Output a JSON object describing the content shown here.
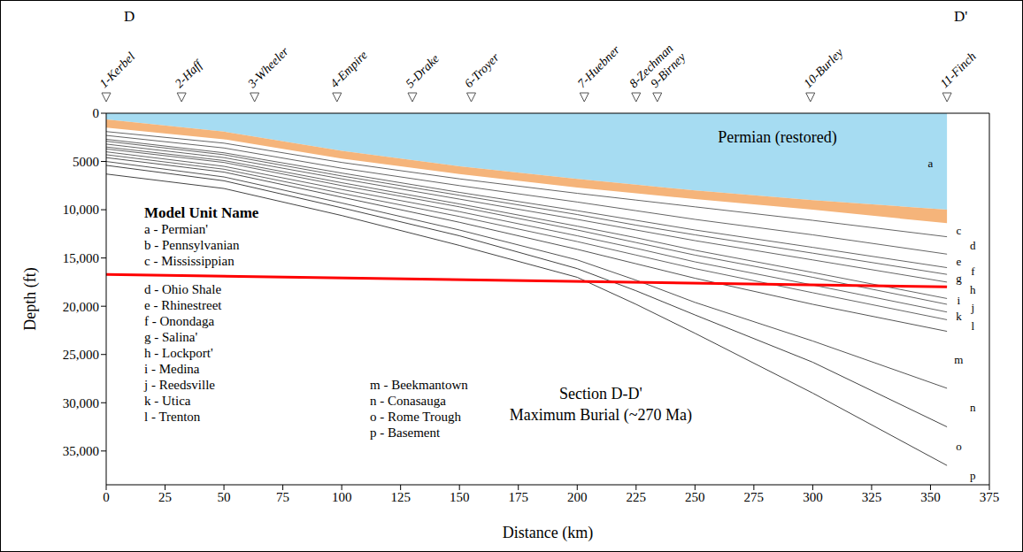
{
  "chart_data": {
    "type": "area",
    "corner_labels": {
      "left": "D",
      "right": "D'"
    },
    "x_label": "Distance (km)",
    "y_label": "Depth (ft)",
    "xlim": [
      0,
      375
    ],
    "xticks": [
      0,
      25,
      50,
      75,
      100,
      125,
      150,
      175,
      200,
      225,
      250,
      275,
      300,
      325,
      350,
      375
    ],
    "ylim": [
      0,
      38500
    ],
    "yticks": [
      0,
      5000,
      {
        "value": 10000,
        "label": "10,000"
      },
      {
        "value": 15000,
        "label": "15,000"
      },
      {
        "value": 20000,
        "label": "20,000"
      },
      {
        "value": 25000,
        "label": "25,000"
      },
      {
        "value": 30000,
        "label": "30,000"
      },
      {
        "value": 35000,
        "label": "35,000"
      }
    ],
    "log": false,
    "grid": false,
    "wells": [
      {
        "x": 0,
        "name": "1-Kerbel"
      },
      {
        "x": 32,
        "name": "2-Haff"
      },
      {
        "x": 63,
        "name": "3-Wheeler"
      },
      {
        "x": 98,
        "name": "4-Empire"
      },
      {
        "x": 130,
        "name": "5-Drake"
      },
      {
        "x": 155,
        "name": "6-Troyer"
      },
      {
        "x": 203,
        "name": "7-Huebner"
      },
      {
        "x": 225,
        "name": "8-Zechman"
      },
      {
        "x": 234,
        "name": "9-Birney"
      },
      {
        "x": 299,
        "name": "10-Burley"
      },
      {
        "x": 357,
        "name": "11-Finch"
      }
    ],
    "x": [
      0,
      50,
      100,
      150,
      200,
      225,
      250,
      300,
      357
    ],
    "series": [
      {
        "name": "a",
        "type": "area",
        "color": "#a6dcf2",
        "values": [
          650,
          1900,
          3900,
          5500,
          6800,
          7400,
          8000,
          9000,
          10000
        ]
      },
      {
        "name": "b",
        "type": "area",
        "color": "#f5b47a",
        "values": [
          1500,
          2700,
          4700,
          6300,
          7700,
          8300,
          8900,
          10000,
          11400
        ]
      },
      {
        "name": "c",
        "type": "line",
        "color": "#666666",
        "values": [
          1900,
          3100,
          5100,
          6800,
          8300,
          9000,
          9700,
          11100,
          12800
        ]
      },
      {
        "name": "d",
        "type": "line",
        "color": "#666666",
        "values": [
          2300,
          3600,
          5700,
          7500,
          9200,
          10100,
          11000,
          12600,
          14600
        ]
      },
      {
        "name": "e",
        "type": "line",
        "color": "#666666",
        "values": [
          2700,
          4100,
          6200,
          8200,
          10100,
          11100,
          12100,
          13900,
          16000
        ]
      },
      {
        "name": "f",
        "type": "line",
        "color": "#666666",
        "values": [
          2900,
          4300,
          6500,
          8500,
          10500,
          11600,
          12600,
          14500,
          16700
        ]
      },
      {
        "name": "g",
        "type": "line",
        "color": "#666666",
        "values": [
          3200,
          4600,
          6800,
          8900,
          11000,
          12100,
          13200,
          15200,
          17500
        ]
      },
      {
        "name": "h",
        "type": "line",
        "color": "#666666",
        "values": [
          3500,
          4900,
          7200,
          9400,
          11700,
          12900,
          14200,
          16500,
          19200
        ]
      },
      {
        "name": "i",
        "type": "line",
        "color": "#666666",
        "values": [
          3700,
          5100,
          7500,
          9700,
          12100,
          13400,
          14700,
          17000,
          19800
        ]
      },
      {
        "name": "j",
        "type": "line",
        "color": "#666666",
        "values": [
          4000,
          5500,
          7900,
          10200,
          12700,
          14000,
          15400,
          17800,
          20600
        ]
      },
      {
        "name": "k",
        "type": "line",
        "color": "#666666",
        "values": [
          4300,
          5800,
          8300,
          10700,
          13300,
          14700,
          16100,
          18600,
          21400
        ]
      },
      {
        "name": "l",
        "type": "line",
        "color": "#555555",
        "values": [
          4600,
          6100,
          8700,
          11300,
          14100,
          15600,
          17100,
          19800,
          22600
        ]
      },
      {
        "name": "m",
        "type": "line",
        "color": "#555555",
        "values": [
          5000,
          6600,
          9300,
          12100,
          15200,
          17300,
          19600,
          23600,
          28500
        ]
      },
      {
        "name": "n",
        "type": "line",
        "color": "#444444",
        "values": [
          5400,
          7000,
          9800,
          12700,
          16100,
          18400,
          20900,
          25800,
          32500
        ]
      },
      {
        "name": "o",
        "type": "line",
        "color": "#444444",
        "values": [
          6300,
          7800,
          10600,
          13700,
          17000,
          19800,
          22800,
          29000,
          36500
        ]
      }
    ],
    "reference_line": {
      "color": "#ff0000",
      "x": [
        0,
        357
      ],
      "y": [
        16700,
        18000
      ]
    },
    "annotations": [
      {
        "text": "Permian (restored)",
        "x": 285,
        "y": 2400
      },
      {
        "text": "Section D-D'",
        "x": 210,
        "y": 29000
      },
      {
        "text": "Maximum Burial (~270 Ma)",
        "x": 210,
        "y": 31200
      }
    ],
    "unit_letters": [
      {
        "text": "a",
        "x": 350,
        "y": 5200
      },
      {
        "text": "c",
        "x": 362,
        "y": 12100
      },
      {
        "text": "d",
        "x": 368,
        "y": 13700
      },
      {
        "text": "e",
        "x": 362,
        "y": 15300
      },
      {
        "text": "f",
        "x": 368,
        "y": 16350
      },
      {
        "text": "g",
        "x": 362,
        "y": 17100
      },
      {
        "text": "h",
        "x": 368,
        "y": 18300
      },
      {
        "text": "i",
        "x": 362,
        "y": 19400
      },
      {
        "text": "j",
        "x": 368,
        "y": 20100
      },
      {
        "text": "k",
        "x": 362,
        "y": 21000
      },
      {
        "text": "l",
        "x": 368,
        "y": 22000
      },
      {
        "text": "m",
        "x": 362,
        "y": 25500
      },
      {
        "text": "n",
        "x": 368,
        "y": 30500
      },
      {
        "text": "o",
        "x": 362,
        "y": 34500
      },
      {
        "text": "p",
        "x": 368,
        "y": 37500
      }
    ],
    "unit_legend": {
      "title": "Model Unit Name",
      "columns": [
        [
          "a - Permian'",
          "b - Pennsylvanian",
          "c - Mississippian",
          "d - Ohio Shale",
          "e - Rhinestreet",
          "f - Onondaga",
          "g - Salina'",
          "h - Lockport'",
          "i - Medina",
          "j - Reedsville",
          "k - Utica",
          "l - Trenton"
        ],
        [
          "m - Beekmantown",
          "n - Conasauga",
          "o - Rome Trough",
          "p - Basement"
        ]
      ]
    }
  }
}
